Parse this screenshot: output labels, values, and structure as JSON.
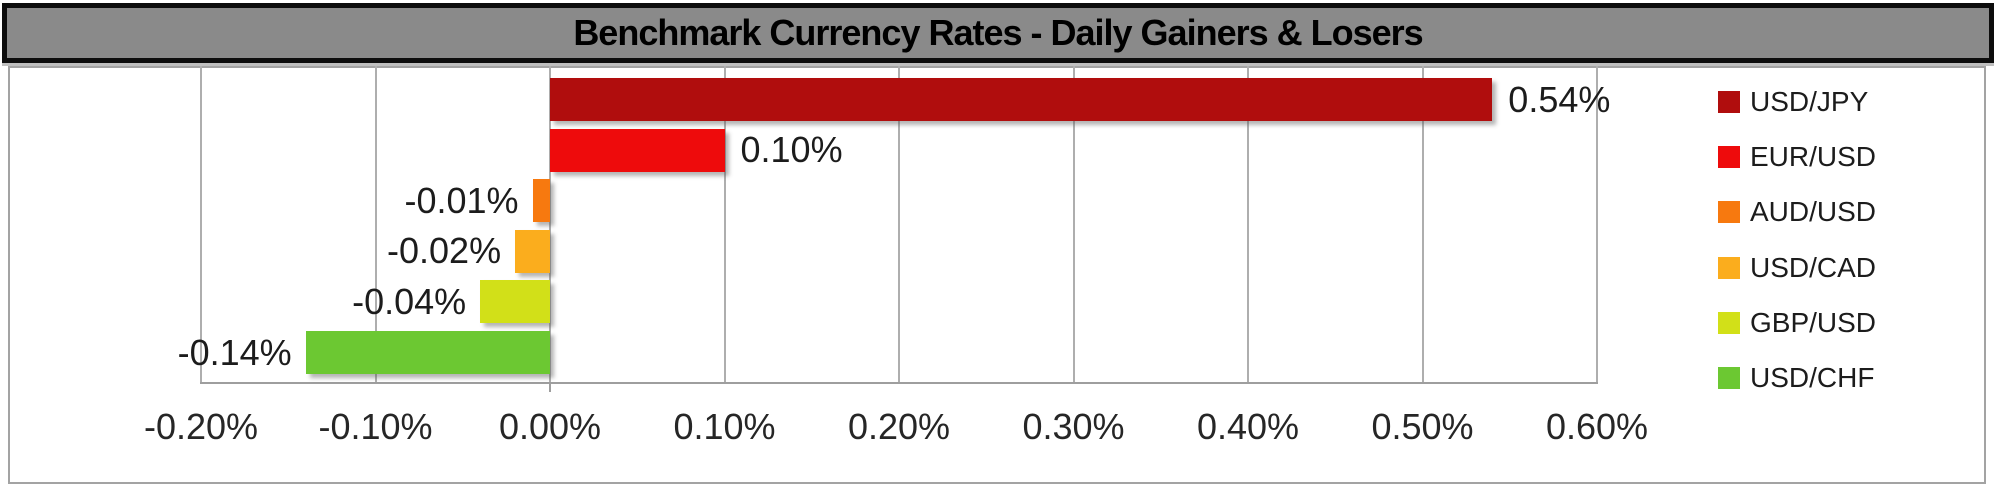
{
  "title": "Benchmark Currency Rates - Daily Gainers & Losers",
  "colors": {
    "title_band_fill": "#8a8a8a",
    "title_band_border": "#0d0d0d",
    "chart_border": "#a3a3a3",
    "gridline": "#aeaeae",
    "axis_line": "#9e9e9e",
    "label_text": "#1c1c1c"
  },
  "chart_data": {
    "type": "bar",
    "orientation": "horizontal",
    "title": "Benchmark Currency Rates - Daily Gainers & Losers",
    "categories": [
      "USD/JPY",
      "EUR/USD",
      "AUD/USD",
      "USD/CAD",
      "GBP/USD",
      "USD/CHF"
    ],
    "values": [
      0.54,
      0.1,
      -0.01,
      -0.02,
      -0.04,
      -0.14
    ],
    "data_labels": [
      "0.54%",
      "0.10%",
      "-0.01%",
      "-0.02%",
      "-0.04%",
      "-0.14%"
    ],
    "bar_colors": [
      "#b00d0d",
      "#ee0b0c",
      "#f7790f",
      "#fbad1d",
      "#d2e018",
      "#6cc832"
    ],
    "xlabel": "",
    "ylabel": "",
    "xlim": [
      -0.2,
      0.6
    ],
    "x_tick_values": [
      -0.2,
      -0.1,
      0.0,
      0.1,
      0.2,
      0.3,
      0.4,
      0.5,
      0.6
    ],
    "x_tick_labels": [
      "-0.20%",
      "-0.10%",
      "0.00%",
      "0.10%",
      "0.20%",
      "0.30%",
      "0.40%",
      "0.50%",
      "0.60%"
    ],
    "grid": "vertical gridlines on",
    "legend_position": "right",
    "legend": [
      {
        "label": "USD/JPY",
        "color": "#b00d0d"
      },
      {
        "label": "EUR/USD",
        "color": "#ee0b0c"
      },
      {
        "label": "AUD/USD",
        "color": "#f7790f"
      },
      {
        "label": "USD/CAD",
        "color": "#fbad1d"
      },
      {
        "label": "GBP/USD",
        "color": "#d2e018"
      },
      {
        "label": "USD/CHF",
        "color": "#6cc832"
      }
    ]
  }
}
